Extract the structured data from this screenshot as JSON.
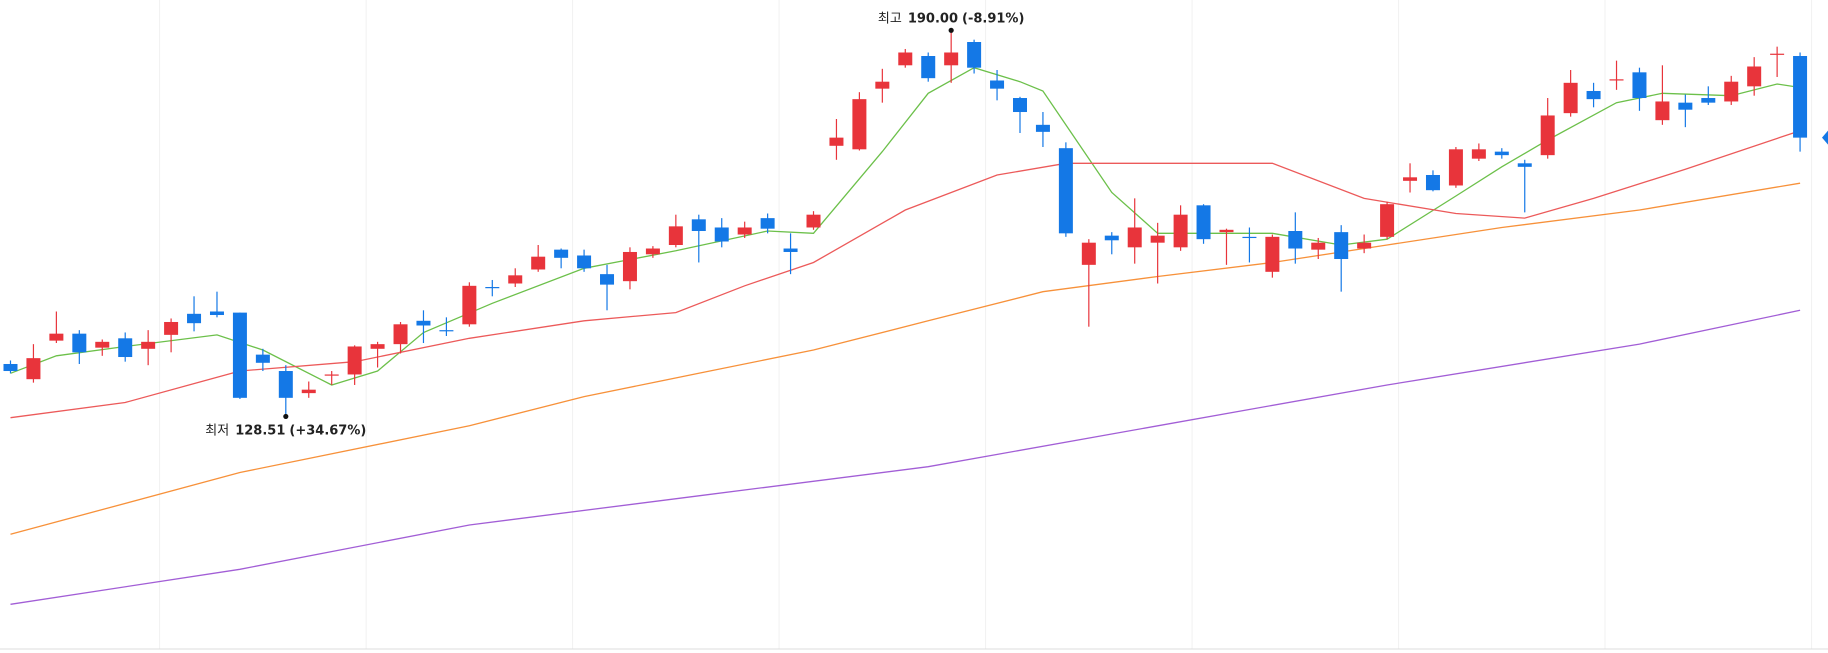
{
  "chart_data": {
    "type": "candlestick",
    "categories": [
      null,
      null,
      null,
      null,
      null,
      null,
      null,
      null,
      null,
      null,
      null,
      null,
      null,
      null,
      null,
      null,
      null,
      null,
      null,
      null,
      null,
      null,
      null,
      null,
      null,
      null,
      null,
      null,
      null,
      null,
      null,
      null,
      null,
      null,
      null,
      null,
      null,
      null,
      null,
      null,
      null,
      null,
      null,
      null,
      null,
      null,
      null,
      null,
      null,
      null,
      null,
      null,
      null,
      null,
      null,
      null,
      null,
      null,
      null,
      null,
      null,
      null,
      null,
      null,
      null,
      null,
      null,
      null,
      null,
      null,
      null,
      null,
      null,
      null,
      null,
      null,
      null,
      null,
      null
    ],
    "open": [
      136.86,
      134.44,
      140.58,
      141.69,
      139.46,
      140.95,
      139.28,
      141.5,
      144.85,
      145.22,
      145.04,
      138.35,
      135.74,
      132.22,
      135.0,
      135.19,
      139.28,
      140.02,
      143.74,
      142.25,
      143.18,
      149.12,
      149.68,
      151.91,
      155.07,
      154.14,
      151.17,
      150.05,
      154.33,
      155.81,
      159.9,
      158.6,
      157.48,
      160.09,
      155.25,
      158.6,
      171.61,
      171.05,
      180.71,
      184.43,
      185.91,
      184.43,
      188.14,
      182.01,
      179.22,
      174.95,
      171.23,
      152.65,
      157.3,
      155.44,
      156.18,
      155.44,
      162.13,
      157.86,
      157.11,
      151.54,
      158.04,
      155.07,
      157.86,
      155.25,
      157.11,
      166.03,
      166.96,
      165.29,
      169.56,
      170.68,
      168.82,
      170.12,
      176.81,
      180.34,
      182.01,
      183.31,
      175.69,
      178.48,
      179.22,
      178.67,
      181.08,
      186.1,
      185.91
    ],
    "high": [
      137.42,
      140.02,
      145.22,
      142.25,
      140.76,
      141.88,
      142.25,
      144.11,
      147.64,
      148.38,
      145.04,
      139.28,
      136.67,
      134.07,
      135.74,
      139.83,
      140.39,
      143.55,
      145.41,
      144.29,
      149.87,
      150.24,
      152.1,
      155.81,
      155.25,
      155.07,
      152.65,
      155.44,
      155.63,
      160.64,
      160.64,
      160.09,
      159.53,
      160.83,
      157.67,
      161.2,
      175.88,
      180.15,
      183.87,
      187.03,
      186.47,
      190.0,
      188.51,
      183.68,
      179.41,
      176.99,
      172.16,
      156.74,
      157.86,
      163.24,
      159.34,
      162.13,
      162.31,
      158.41,
      158.6,
      157.48,
      161.01,
      156.93,
      158.97,
      157.48,
      162.69,
      168.82,
      167.7,
      171.42,
      171.98,
      171.23,
      169.38,
      179.22,
      183.68,
      181.64,
      185.17,
      184.05,
      184.43,
      179.78,
      181.08,
      182.75,
      185.73,
      187.4,
      186.47
    ],
    "low": [
      135.37,
      133.89,
      140.2,
      136.86,
      138.16,
      137.23,
      136.67,
      138.72,
      142.06,
      144.29,
      131.29,
      135.74,
      128.51,
      131.47,
      133.52,
      133.52,
      136.3,
      138.53,
      140.2,
      141.32,
      142.8,
      147.64,
      149.12,
      151.54,
      152.1,
      151.54,
      145.41,
      148.75,
      153.77,
      155.44,
      153.03,
      155.44,
      156.93,
      157.67,
      151.17,
      158.23,
      169.38,
      170.86,
      178.48,
      184.05,
      181.82,
      181.64,
      183.12,
      178.85,
      173.65,
      171.42,
      157.11,
      142.8,
      154.33,
      152.84,
      149.68,
      154.88,
      156.0,
      152.65,
      153.03,
      150.61,
      152.84,
      153.58,
      148.38,
      154.51,
      156.74,
      164.17,
      164.36,
      164.92,
      169.19,
      169.56,
      161.01,
      169.56,
      176.25,
      177.74,
      180.52,
      177.18,
      174.95,
      174.58,
      178.11,
      178.11,
      179.59,
      182.57,
      170.68
    ],
    "close": [
      135.74,
      137.79,
      141.69,
      138.72,
      140.39,
      137.97,
      140.39,
      143.55,
      143.36,
      144.66,
      131.47,
      137.05,
      131.47,
      132.77,
      135.19,
      139.65,
      140.02,
      143.18,
      142.99,
      142.06,
      149.31,
      148.94,
      150.98,
      153.95,
      153.77,
      152.1,
      149.5,
      154.7,
      155.25,
      158.78,
      158.04,
      156.37,
      158.6,
      158.41,
      154.7,
      160.64,
      172.91,
      179.04,
      181.82,
      186.47,
      182.38,
      186.47,
      184.05,
      180.71,
      176.99,
      173.83,
      157.67,
      156.18,
      156.56,
      158.6,
      157.3,
      160.64,
      156.74,
      158.23,
      156.93,
      157.11,
      155.25,
      156.18,
      153.58,
      156.18,
      162.31,
      166.59,
      164.54,
      171.05,
      171.05,
      170.12,
      168.26,
      176.44,
      181.64,
      179.04,
      182.2,
      179.22,
      178.67,
      177.36,
      178.48,
      181.82,
      184.24,
      186.28,
      172.91
    ],
    "up_color": "#e8343b",
    "down_color": "#1478e6",
    "series": [
      {
        "color": "#6cc04a",
        "x": [
          0,
          2,
          5,
          9,
          11,
          14,
          16,
          18,
          21,
          25,
          29,
          33,
          35,
          38,
          40,
          42,
          44,
          45,
          48,
          50,
          52,
          55,
          58,
          60,
          63,
          65,
          67,
          70,
          72,
          75,
          77,
          78
        ],
        "values": [
          135.37,
          138.16,
          139.65,
          141.5,
          139.09,
          133.52,
          135.74,
          141.88,
          146.52,
          152.1,
          154.88,
          158.04,
          157.67,
          170.68,
          179.97,
          184.05,
          181.82,
          180.34,
          164.17,
          157.67,
          157.67,
          157.67,
          155.81,
          156.74,
          163.62,
          168.26,
          172.53,
          178.48,
          179.97,
          179.59,
          181.45,
          180.89
        ]
      },
      {
        "color": "#ec5a5a",
        "x": [
          0,
          5,
          10,
          15,
          20,
          25,
          29,
          32,
          35,
          39,
          43,
          46,
          50,
          55,
          59,
          63,
          66,
          69,
          73,
          78
        ],
        "values": [
          128.31,
          130.73,
          135.74,
          137.23,
          140.95,
          143.74,
          145.04,
          149.31,
          153.03,
          161.39,
          166.96,
          168.82,
          168.82,
          168.82,
          163.24,
          160.83,
          160.09,
          163.24,
          167.89,
          174.02
        ]
      },
      {
        "color": "#f7913a",
        "x": [
          0,
          10,
          20,
          25,
          30,
          35,
          40,
          45,
          50,
          55,
          60,
          65,
          71,
          78
        ],
        "values": [
          109.73,
          119.58,
          127.01,
          131.66,
          135.37,
          139.09,
          143.74,
          148.38,
          150.8,
          153.03,
          155.81,
          158.6,
          161.39,
          165.66
        ]
      },
      {
        "color": "#a25ed6",
        "x": [
          0,
          10,
          20,
          30,
          40,
          50,
          60,
          71,
          78
        ],
        "values": [
          98.59,
          104.16,
          111.22,
          115.86,
          120.51,
          127.01,
          133.52,
          140.02,
          145.41
        ]
      }
    ],
    "ylim": [
      91.15,
      194.83
    ],
    "annotations": [
      {
        "label": "최고",
        "value": 190.0,
        "value_label": "190.00",
        "change": "(-8.91%)"
      },
      {
        "label": "최저",
        "value": 128.51,
        "value_label": "128.51",
        "change": "(+34.67%)"
      }
    ]
  }
}
